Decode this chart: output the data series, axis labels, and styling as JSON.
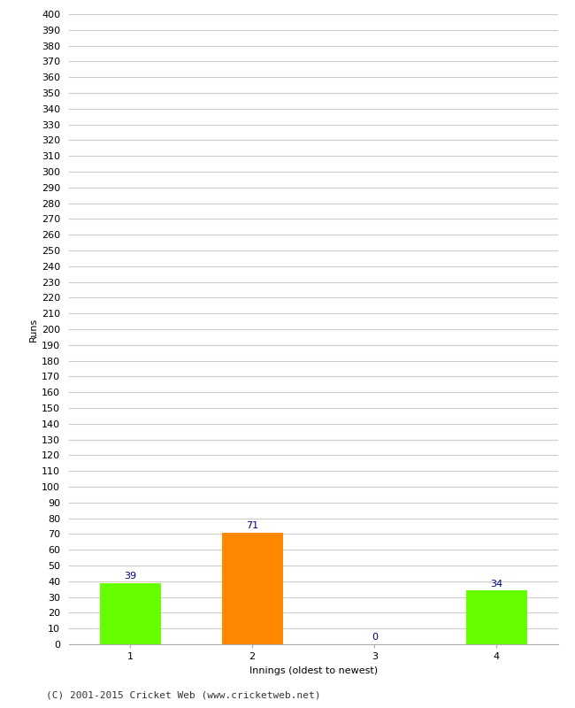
{
  "categories": [
    "1",
    "2",
    "3",
    "4"
  ],
  "values": [
    39,
    71,
    0,
    34
  ],
  "bar_colors": [
    "#66ff00",
    "#ff8800",
    "#66ff00",
    "#66ff00"
  ],
  "ylabel": "Runs",
  "xlabel": "Innings (oldest to newest)",
  "ylim": [
    0,
    400
  ],
  "yticks": [
    0,
    10,
    20,
    30,
    40,
    50,
    60,
    70,
    80,
    90,
    100,
    110,
    120,
    130,
    140,
    150,
    160,
    170,
    180,
    190,
    200,
    210,
    220,
    230,
    240,
    250,
    260,
    270,
    280,
    290,
    300,
    310,
    320,
    330,
    340,
    350,
    360,
    370,
    380,
    390,
    400
  ],
  "annotation_color": "#000080",
  "annotation_fontsize": 8,
  "background_color": "#ffffff",
  "grid_color": "#cccccc",
  "footer": "(C) 2001-2015 Cricket Web (www.cricketweb.net)",
  "bar_width": 0.5,
  "tick_fontsize": 8,
  "ylabel_fontsize": 8,
  "xlabel_fontsize": 8,
  "footer_fontsize": 8
}
